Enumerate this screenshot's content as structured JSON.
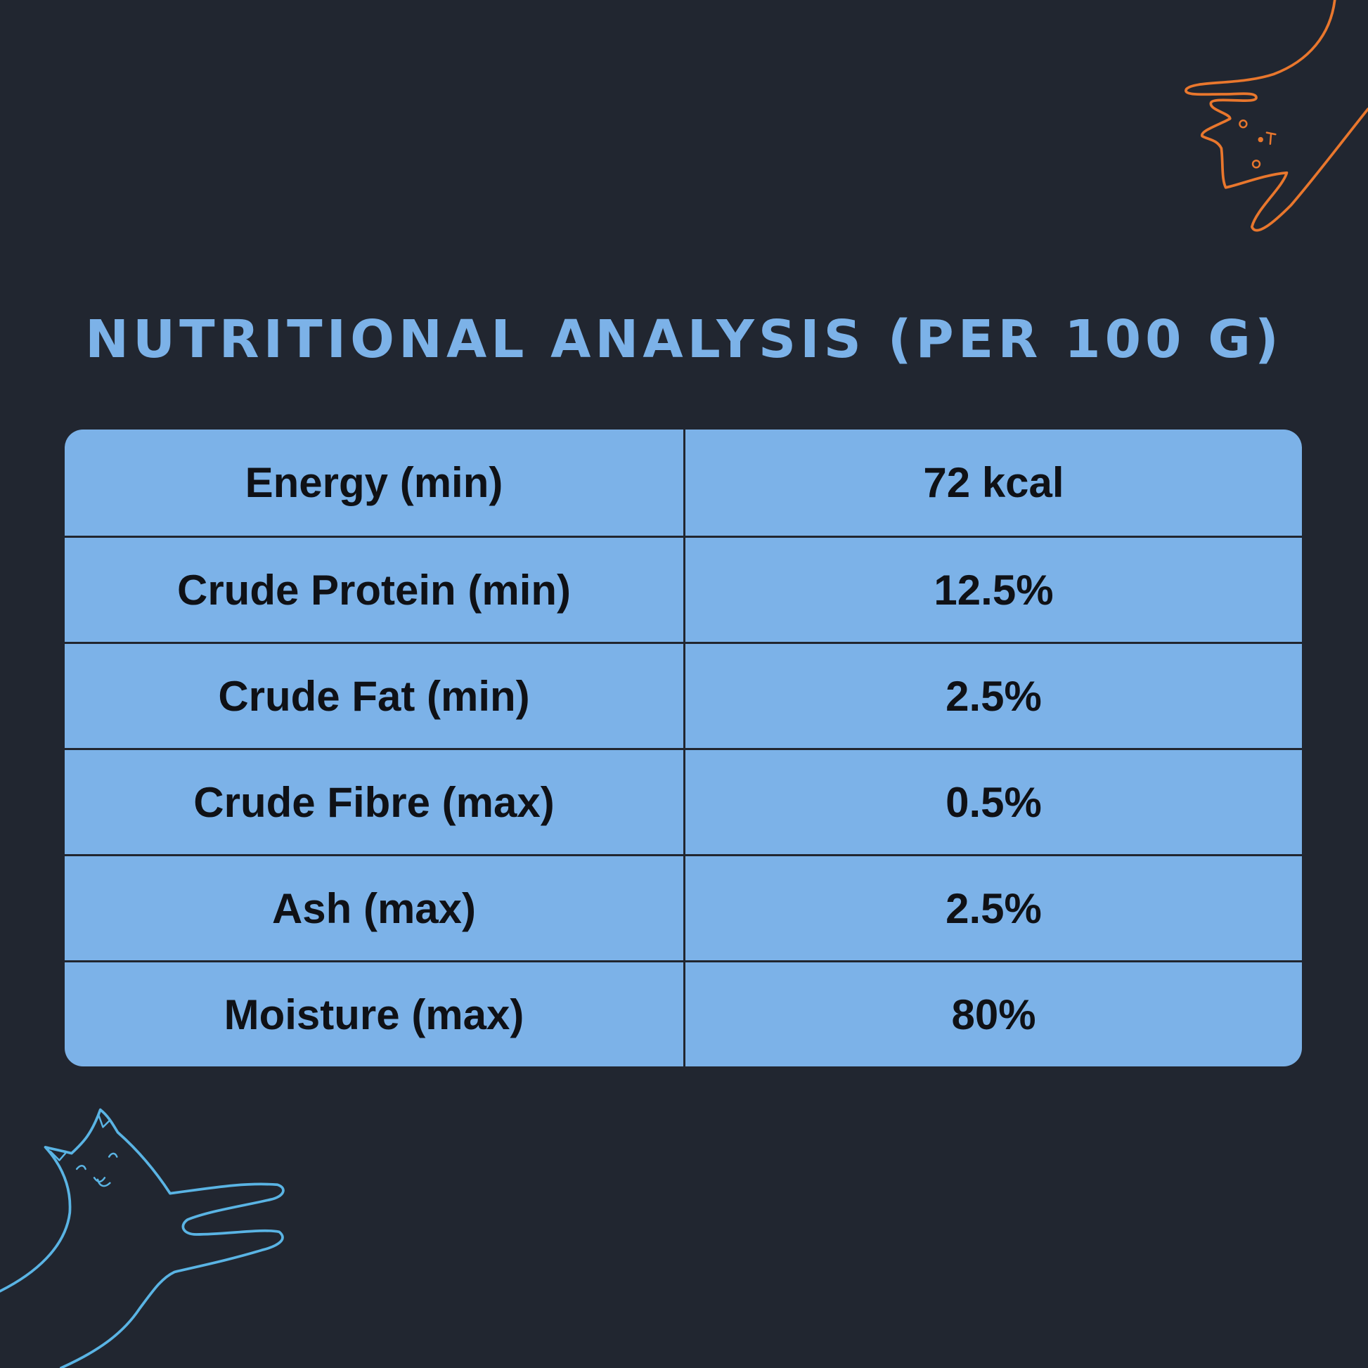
{
  "header": {
    "title": "Nutritional Analysis (per 100 g)"
  },
  "table": {
    "rows": [
      [
        "Energy (min)",
        "72 kcal"
      ],
      [
        "Crude Protein (min)",
        "12.5%"
      ],
      [
        "Crude Fat (min)",
        "2.5%"
      ],
      [
        "Crude Fibre (max)",
        "0.5%"
      ],
      [
        "Ash (max)",
        "2.5%"
      ],
      [
        "Moisture (max)",
        "80%"
      ]
    ]
  }
}
